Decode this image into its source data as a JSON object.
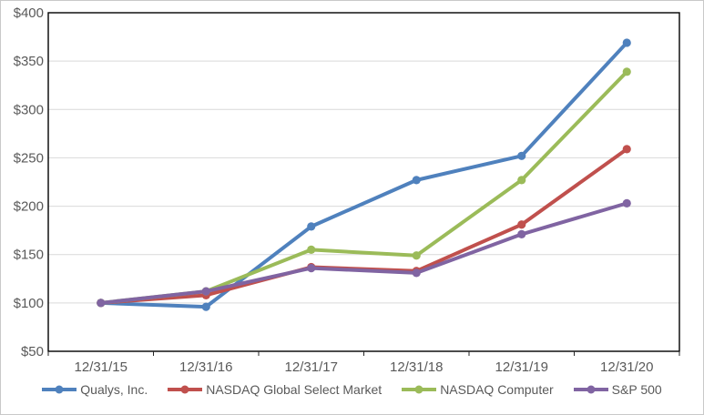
{
  "chart_data": {
    "type": "line",
    "title": "",
    "xlabel": "",
    "ylabel": "",
    "x_categories": [
      "12/31/15",
      "12/31/16",
      "12/31/17",
      "12/31/18",
      "12/31/19",
      "12/31/20"
    ],
    "y_axis": {
      "min": 50,
      "max": 400,
      "step": 50,
      "labels": [
        "$50",
        "$100",
        "$150",
        "$200",
        "$250",
        "$300",
        "$350",
        "$400"
      ]
    },
    "series": [
      {
        "name": "Qualys, Inc.",
        "color": "#4F81BD",
        "values": [
          100,
          96,
          179,
          227,
          252,
          369
        ]
      },
      {
        "name": "NASDAQ Global Select Market",
        "color": "#C0504D",
        "values": [
          100,
          108,
          137,
          133,
          181,
          259
        ]
      },
      {
        "name": "NASDAQ Computer",
        "color": "#9BBB59",
        "values": [
          100,
          112,
          155,
          149,
          227,
          339
        ]
      },
      {
        "name": "S&P 500",
        "color": "#8064A2",
        "values": [
          100,
          112,
          136,
          131,
          171,
          203
        ]
      }
    ],
    "grid": true,
    "legend_position": "bottom",
    "marker": "circle",
    "colors": {
      "axis_text": "#595959",
      "gridline": "#D9D9D9",
      "plot_border": "#000000",
      "tick": "#262626"
    }
  }
}
